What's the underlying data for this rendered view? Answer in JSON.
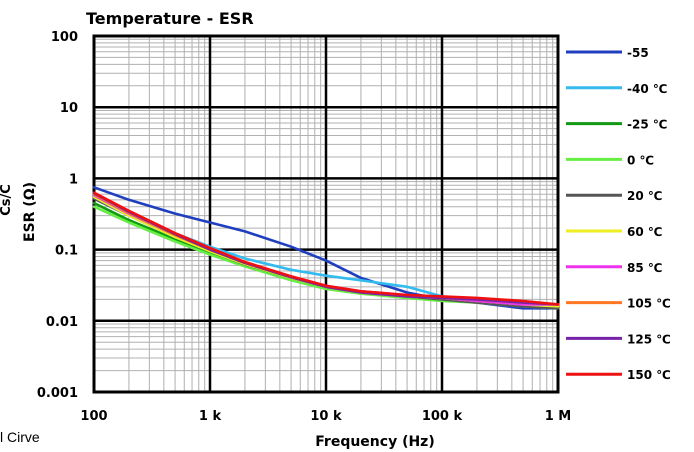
{
  "caption": "l Cirve",
  "chart_data": {
    "type": "line",
    "title": "Temperature - ESR",
    "xlabel": "Frequency (Hz)",
    "ylabel": "ESR (Ω)",
    "ylabel_cut": "Cs/C",
    "x_scale": "log",
    "y_scale": "log",
    "xlim": [
      100,
      1000000
    ],
    "ylim": [
      0.001,
      100
    ],
    "grid": true,
    "legend_position": "right",
    "x_ticks": [
      {
        "value": 100,
        "label": "100"
      },
      {
        "value": 1000,
        "label": "1 k"
      },
      {
        "value": 10000,
        "label": "10 k"
      },
      {
        "value": 100000,
        "label": "100 k"
      },
      {
        "value": 1000000,
        "label": "1 M"
      }
    ],
    "y_ticks": [
      {
        "value": 100,
        "label": "100"
      },
      {
        "value": 10,
        "label": "10"
      },
      {
        "value": 1,
        "label": "1"
      },
      {
        "value": 0.1,
        "label": "0.1"
      },
      {
        "value": 0.01,
        "label": "0.01"
      },
      {
        "value": 0.001,
        "label": "0.001"
      }
    ],
    "x": [
      100,
      200,
      500,
      1000,
      2000,
      5000,
      10000,
      20000,
      50000,
      100000,
      200000,
      500000,
      1000000
    ],
    "series": [
      {
        "name": "-55",
        "color": "#1f3fbf",
        "values": [
          0.75,
          0.5,
          0.32,
          0.24,
          0.18,
          0.11,
          0.07,
          0.04,
          0.025,
          0.02,
          0.018,
          0.015,
          0.015
        ]
      },
      {
        "name": "-40 ℃",
        "color": "#33bbee",
        "values": [
          0.62,
          0.35,
          0.17,
          0.11,
          0.075,
          0.052,
          0.043,
          0.037,
          0.03,
          0.022,
          0.019,
          0.017,
          0.016
        ]
      },
      {
        "name": "-25 ℃",
        "color": "#119911",
        "values": [
          0.45,
          0.26,
          0.14,
          0.09,
          0.06,
          0.038,
          0.029,
          0.025,
          0.022,
          0.02,
          0.019,
          0.017,
          0.016
        ]
      },
      {
        "name": "0 ℃",
        "color": "#66ee44",
        "values": [
          0.4,
          0.24,
          0.13,
          0.085,
          0.058,
          0.037,
          0.028,
          0.024,
          0.021,
          0.019,
          0.018,
          0.016,
          0.015
        ]
      },
      {
        "name": "20 ℃",
        "color": "#555555",
        "values": [
          0.52,
          0.3,
          0.15,
          0.095,
          0.062,
          0.04,
          0.03,
          0.025,
          0.022,
          0.02,
          0.018,
          0.016,
          0.015
        ]
      },
      {
        "name": "60 ℃",
        "color": "#eeee22",
        "values": [
          0.55,
          0.3,
          0.15,
          0.095,
          0.063,
          0.04,
          0.03,
          0.025,
          0.022,
          0.021,
          0.019,
          0.017,
          0.016
        ]
      },
      {
        "name": "85 ℃",
        "color": "#ee33ee",
        "values": [
          0.58,
          0.32,
          0.16,
          0.1,
          0.066,
          0.042,
          0.031,
          0.026,
          0.023,
          0.021,
          0.019,
          0.017,
          0.017
        ]
      },
      {
        "name": "105 ℃",
        "color": "#ff7722",
        "values": [
          0.6,
          0.33,
          0.16,
          0.1,
          0.065,
          0.041,
          0.03,
          0.025,
          0.022,
          0.021,
          0.02,
          0.018,
          0.017
        ]
      },
      {
        "name": "125 ℃",
        "color": "#7722aa",
        "values": [
          0.62,
          0.34,
          0.165,
          0.1,
          0.065,
          0.041,
          0.03,
          0.025,
          0.022,
          0.021,
          0.02,
          0.018,
          0.017
        ]
      },
      {
        "name": "150 ℃",
        "color": "#ee1111",
        "values": [
          0.63,
          0.35,
          0.17,
          0.105,
          0.067,
          0.042,
          0.031,
          0.026,
          0.023,
          0.022,
          0.021,
          0.019,
          0.017
        ]
      }
    ]
  }
}
